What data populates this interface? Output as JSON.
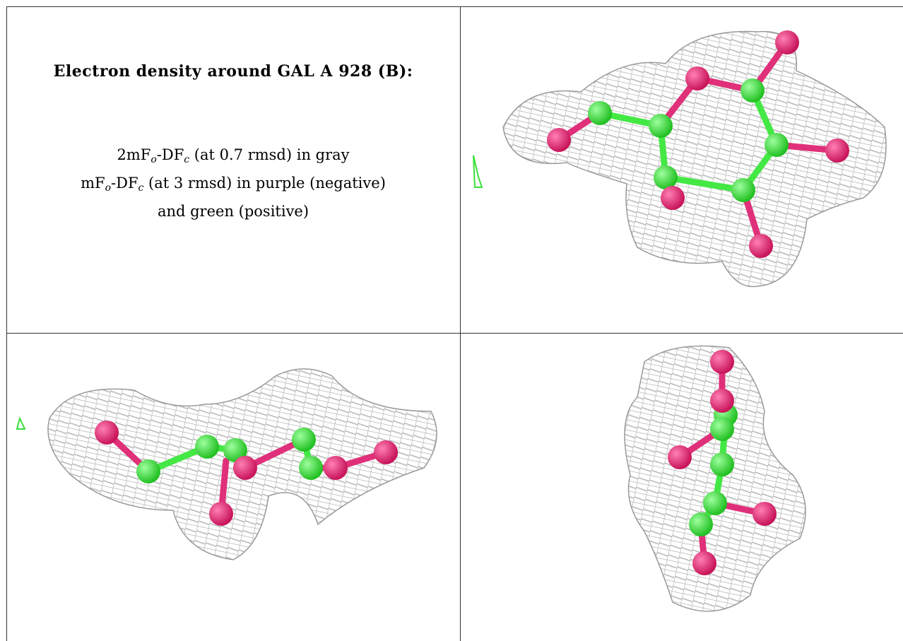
{
  "header": {
    "title": "Electron density around GAL A 928 (B):"
  },
  "legend": [
    [
      "2mF",
      "o",
      "-DF",
      "c",
      " (at 0.7 rmsd) in gray"
    ],
    [
      "mF",
      "o",
      "-DF",
      "c",
      " (at 3 rmsd) in purple (negative)"
    ],
    [
      "and green (positive)"
    ]
  ]
}
